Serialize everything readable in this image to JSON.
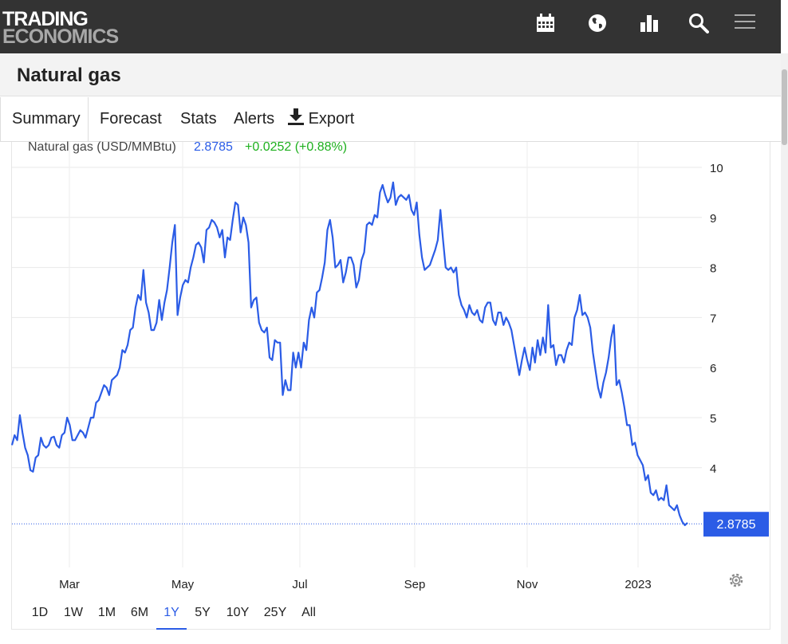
{
  "header": {
    "logo_line1": "TRADING",
    "logo_line2": "ECONOMICS",
    "icons": [
      "calendar-icon",
      "globe-icon",
      "bar-chart-icon",
      "search-icon",
      "menu-icon"
    ]
  },
  "page": {
    "title": "Natural gas"
  },
  "tabs": {
    "summary": "Summary",
    "forecast": "Forecast",
    "stats": "Stats",
    "alerts": "Alerts",
    "export": "Export"
  },
  "legend": {
    "name": "Natural gas (USD/MMBtu)",
    "value": "2.8785",
    "change": "+0.0252 (+0.88%)"
  },
  "last_price_label": "2.8785",
  "ranges": [
    "1D",
    "1W",
    "1M",
    "6M",
    "1Y",
    "5Y",
    "10Y",
    "25Y",
    "All"
  ],
  "selected_range": "1Y",
  "colors": {
    "line": "#2b5ce6",
    "positive": "#1eb01e",
    "accent": "#2b5ce6",
    "topbar": "#333333"
  },
  "chart_data": {
    "type": "line",
    "x_tick_labels": [
      "Mar",
      "May",
      "Jul",
      "Sep",
      "Nov",
      "2023"
    ],
    "y_tick_labels": [
      "10",
      "9",
      "8",
      "7",
      "6",
      "5",
      "4"
    ],
    "ylim": [
      2.5,
      10.5
    ],
    "grid": true,
    "last_value": 2.8785,
    "series": [
      {
        "name": "Natural gas (USD/MMBtu)",
        "values": [
          4.45,
          4.65,
          4.55,
          5.05,
          4.7,
          4.4,
          4.25,
          3.95,
          3.92,
          4.2,
          4.25,
          4.6,
          4.45,
          4.4,
          4.45,
          4.6,
          4.62,
          4.45,
          4.4,
          4.65,
          4.7,
          5.0,
          4.85,
          4.55,
          4.55,
          4.65,
          4.75,
          4.7,
          4.6,
          4.8,
          5.0,
          5.0,
          5.3,
          5.35,
          5.5,
          5.65,
          5.6,
          5.45,
          5.75,
          5.8,
          5.85,
          6.0,
          6.35,
          6.3,
          6.45,
          6.75,
          6.8,
          7.2,
          7.45,
          7.35,
          7.95,
          7.3,
          7.1,
          6.75,
          6.75,
          6.9,
          7.35,
          6.95,
          7.3,
          7.55,
          8.0,
          8.5,
          8.85,
          7.05,
          7.4,
          7.65,
          7.75,
          7.7,
          8.0,
          8.2,
          8.45,
          8.5,
          8.4,
          8.1,
          8.75,
          8.8,
          8.95,
          8.9,
          8.8,
          8.6,
          8.75,
          8.2,
          8.6,
          8.55,
          8.95,
          9.3,
          9.25,
          8.7,
          9.0,
          8.85,
          8.5,
          7.2,
          7.35,
          7.4,
          6.9,
          6.75,
          6.7,
          6.8,
          6.2,
          6.15,
          6.55,
          6.5,
          6.5,
          5.45,
          5.75,
          5.55,
          5.55,
          6.3,
          6.0,
          6.3,
          6.0,
          6.5,
          6.35,
          6.95,
          7.2,
          7.0,
          7.5,
          7.55,
          7.8,
          8.1,
          8.75,
          8.95,
          8.6,
          8.0,
          8.05,
          8.15,
          7.7,
          7.9,
          8.2,
          8.2,
          8.05,
          7.6,
          7.75,
          8.15,
          8.3,
          8.85,
          8.9,
          8.85,
          9.05,
          9.0,
          9.5,
          9.65,
          9.45,
          9.3,
          9.4,
          9.7,
          9.25,
          9.4,
          9.45,
          9.4,
          9.35,
          9.45,
          9.15,
          9.05,
          9.3,
          8.65,
          8.2,
          7.95,
          8.0,
          8.05,
          8.2,
          8.35,
          8.55,
          9.15,
          8.55,
          8.0,
          7.95,
          8.0,
          7.9,
          8.0,
          7.45,
          7.25,
          7.15,
          7.0,
          7.25,
          7.1,
          7.05,
          7.15,
          6.95,
          6.9,
          7.2,
          7.3,
          7.3,
          6.95,
          6.85,
          7.1,
          7.1,
          6.85,
          7.0,
          6.9,
          6.75,
          6.45,
          6.15,
          5.85,
          6.15,
          6.4,
          6.15,
          5.95,
          6.4,
          6.1,
          6.55,
          6.25,
          6.6,
          6.3,
          7.25,
          6.4,
          6.45,
          6.05,
          6.25,
          6.25,
          6.1,
          6.35,
          6.5,
          6.45,
          7.0,
          7.15,
          7.45,
          7.05,
          7.1,
          7.0,
          6.8,
          6.3,
          5.95,
          5.6,
          5.4,
          5.7,
          5.9,
          6.2,
          6.6,
          6.85,
          5.65,
          5.75,
          5.5,
          5.2,
          4.85,
          4.85,
          4.45,
          4.5,
          4.25,
          4.15,
          4.05,
          3.75,
          3.85,
          3.5,
          3.45,
          3.55,
          3.35,
          3.4,
          3.35,
          3.65,
          3.25,
          3.2,
          3.15,
          3.25,
          3.05,
          2.92,
          2.85,
          2.9
        ]
      }
    ]
  }
}
